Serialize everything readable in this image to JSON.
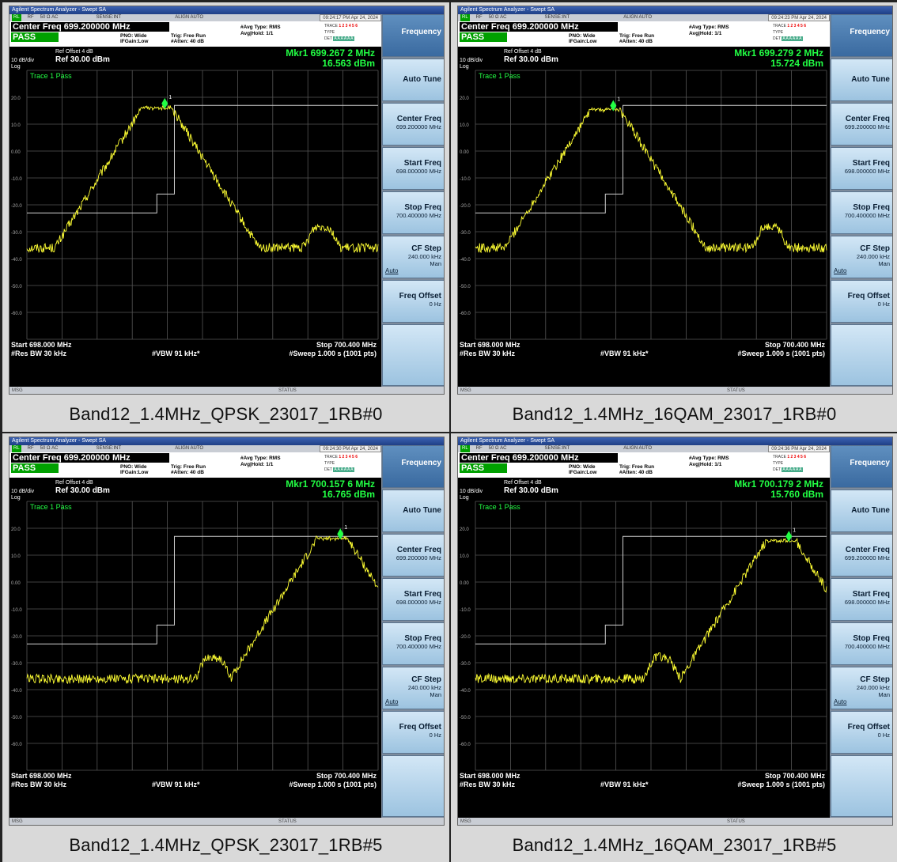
{
  "panels": [
    {
      "window_title": "Agilent Spectrum Analyzer - Swept SA",
      "status_bar": {
        "rl": "RL",
        "rf": "RF",
        "z": "50 Ω  AC",
        "sense": "SENSE:INT",
        "align": "ALIGN AUTO",
        "timestamp": "09:24:17 PM Apr 24, 2024"
      },
      "center_freq_label": "Center Freq 699.200000 MHz",
      "pass_label": "PASS",
      "pno": "PNO: Wide",
      "ifgain": "IFGain:Low",
      "trig": "Trig: Free Run",
      "atten": "#Atten: 40 dB",
      "avg_type": "#Avg Type: RMS",
      "avg_hold": "Avg|Hold: 1/1",
      "trace_labels": {
        "trace": "TRACE",
        "type": "TYPE",
        "det": "DET",
        "trace_nums": "1 2 3 4 5 6",
        "det_vals": "A A A A A A"
      },
      "ref_offset": "Ref Offset 4 dB",
      "ref_value": "Ref 30.00 dBm",
      "scale": "10 dB/div",
      "log": "Log",
      "trace_status": "Trace 1 Pass",
      "marker_freq": "Mkr1 699.267 2 MHz",
      "marker_level": "16.563 dBm",
      "start": "Start 698.000 MHz",
      "stop": "Stop 700.400 MHz",
      "rbw": "#Res BW 30 kHz",
      "vbw": "#VBW 91 kHz*",
      "sweep": "#Sweep  1.000 s (1001 pts)",
      "msg": "MSG",
      "status": "STATUS",
      "caption": "Band12_1.4MHz_QPSK_23017_1RB#0",
      "trace": {
        "peak_center": 0.37,
        "side_bump": 0.84,
        "spur": 0.62,
        "peak_level": 16.5
      }
    },
    {
      "window_title": "Agilent Spectrum Analyzer - Swept SA",
      "status_bar": {
        "rl": "RL",
        "rf": "RF",
        "z": "50 Ω  AC",
        "sense": "SENSE:INT",
        "align": "ALIGN AUTO",
        "timestamp": "09:24:23 PM Apr 24, 2024"
      },
      "center_freq_label": "Center Freq 699.200000 MHz",
      "pass_label": "PASS",
      "pno": "PNO: Wide",
      "ifgain": "IFGain:Low",
      "trig": "Trig: Free Run",
      "atten": "#Atten: 40 dB",
      "avg_type": "#Avg Type: RMS",
      "avg_hold": "Avg|Hold: 1/1",
      "trace_labels": {
        "trace": "TRACE",
        "type": "TYPE",
        "det": "DET",
        "trace_nums": "1 2 3 4 5 6",
        "det_vals": "A A A A A A"
      },
      "ref_offset": "Ref Offset 4 dB",
      "ref_value": "Ref 30.00 dBm",
      "scale": "10 dB/div",
      "log": "Log",
      "trace_status": "Trace 1 Pass",
      "marker_freq": "Mkr1 699.279 2 MHz",
      "marker_level": "15.724 dBm",
      "start": "Start 698.000 MHz",
      "stop": "Stop 700.400 MHz",
      "rbw": "#Res BW 30 kHz",
      "vbw": "#VBW 91 kHz*",
      "sweep": "#Sweep  1.000 s (1001 pts)",
      "msg": "MSG",
      "status": "STATUS",
      "caption": "Band12_1.4MHz_16QAM_23017_1RB#0",
      "trace": {
        "peak_center": 0.37,
        "side_bump": 0.84,
        "spur": 0.62,
        "peak_level": 15.7
      }
    },
    {
      "window_title": "Agilent Spectrum Analyzer - Swept SA",
      "status_bar": {
        "rl": "RL",
        "rf": "RF",
        "z": "50 Ω  AC",
        "sense": "SENSE:INT",
        "align": "ALIGN AUTO",
        "timestamp": "09:24:30 PM Apr 24, 2024"
      },
      "center_freq_label": "Center Freq 699.200000 MHz",
      "pass_label": "PASS",
      "pno": "PNO: Wide",
      "ifgain": "IFGain:Low",
      "trig": "Trig: Free Run",
      "atten": "#Atten: 40 dB",
      "avg_type": "#Avg Type: RMS",
      "avg_hold": "Avg|Hold: 1/1",
      "trace_labels": {
        "trace": "TRACE",
        "type": "TYPE",
        "det": "DET",
        "trace_nums": "1 2 3 4 5 6",
        "det_vals": "A A A A A A"
      },
      "ref_offset": "Ref Offset 4 dB",
      "ref_value": "Ref 30.00 dBm",
      "scale": "10 dB/div",
      "log": "Log",
      "trace_status": "Trace 1 Pass",
      "marker_freq": "Mkr1 700.157 6 MHz",
      "marker_level": "16.765 dBm",
      "start": "Start 698.000 MHz",
      "stop": "Stop 700.400 MHz",
      "rbw": "#Res BW 30 kHz",
      "vbw": "#VBW 91 kHz*",
      "sweep": "#Sweep  1.000 s (1001 pts)",
      "msg": "MSG",
      "status": "STATUS",
      "caption": "Band12_1.4MHz_QPSK_23017_1RB#5",
      "trace": {
        "peak_center": 0.87,
        "side_bump": 0.53,
        "spur": 0.73,
        "peak_level": 16.7
      }
    },
    {
      "window_title": "Agilent Spectrum Analyzer - Swept SA",
      "status_bar": {
        "rl": "RL",
        "rf": "RF",
        "z": "50 Ω  AC",
        "sense": "SENSE:INT",
        "align": "ALIGN AUTO",
        "timestamp": "09:24:36 PM Apr 24, 2024"
      },
      "center_freq_label": "Center Freq 699.200000 MHz",
      "pass_label": "PASS",
      "pno": "PNO: Wide",
      "ifgain": "IFGain:Low",
      "trig": "Trig: Free Run",
      "atten": "#Atten: 40 dB",
      "avg_type": "#Avg Type: RMS",
      "avg_hold": "Avg|Hold: 1/1",
      "trace_labels": {
        "trace": "TRACE",
        "type": "TYPE",
        "det": "DET",
        "trace_nums": "1 2 3 4 5 6",
        "det_vals": "A A A A A A"
      },
      "ref_offset": "Ref Offset 4 dB",
      "ref_value": "Ref 30.00 dBm",
      "scale": "10 dB/div",
      "log": "Log",
      "trace_status": "Trace 1 Pass",
      "marker_freq": "Mkr1 700.179 2 MHz",
      "marker_level": "15.760 dBm",
      "start": "Start 698.000 MHz",
      "stop": "Stop 700.400 MHz",
      "rbw": "#Res BW 30 kHz",
      "vbw": "#VBW 91 kHz*",
      "sweep": "#Sweep  1.000 s (1001 pts)",
      "msg": "MSG",
      "status": "STATUS",
      "caption": "Band12_1.4MHz_16QAM_23017_1RB#5",
      "trace": {
        "peak_center": 0.87,
        "side_bump": 0.53,
        "spur": 0.73,
        "peak_level": 15.8
      }
    }
  ],
  "softkeys": {
    "menu_title": "Frequency",
    "auto_tune": "Auto Tune",
    "center_freq": {
      "label": "Center Freq",
      "value": "699.200000 MHz"
    },
    "start_freq": {
      "label": "Start Freq",
      "value": "698.000000 MHz"
    },
    "stop_freq": {
      "label": "Stop Freq",
      "value": "700.400000 MHz"
    },
    "cf_step": {
      "label": "CF Step",
      "value": "240.000 kHz",
      "auto": "Auto",
      "man": "Man"
    },
    "freq_offset": {
      "label": "Freq Offset",
      "value": "0 Hz"
    }
  },
  "y_ticks": [
    "20.0",
    "10.0",
    "0.00",
    "-10.0",
    "-20.0",
    "-30.0",
    "-40.0",
    "-50.0",
    "-60.0"
  ],
  "colors": {
    "trace": "#ffff33",
    "marker": "#22ff44",
    "grid": "#555555",
    "pass": "#00a000",
    "limit": "#cfcfcf"
  }
}
